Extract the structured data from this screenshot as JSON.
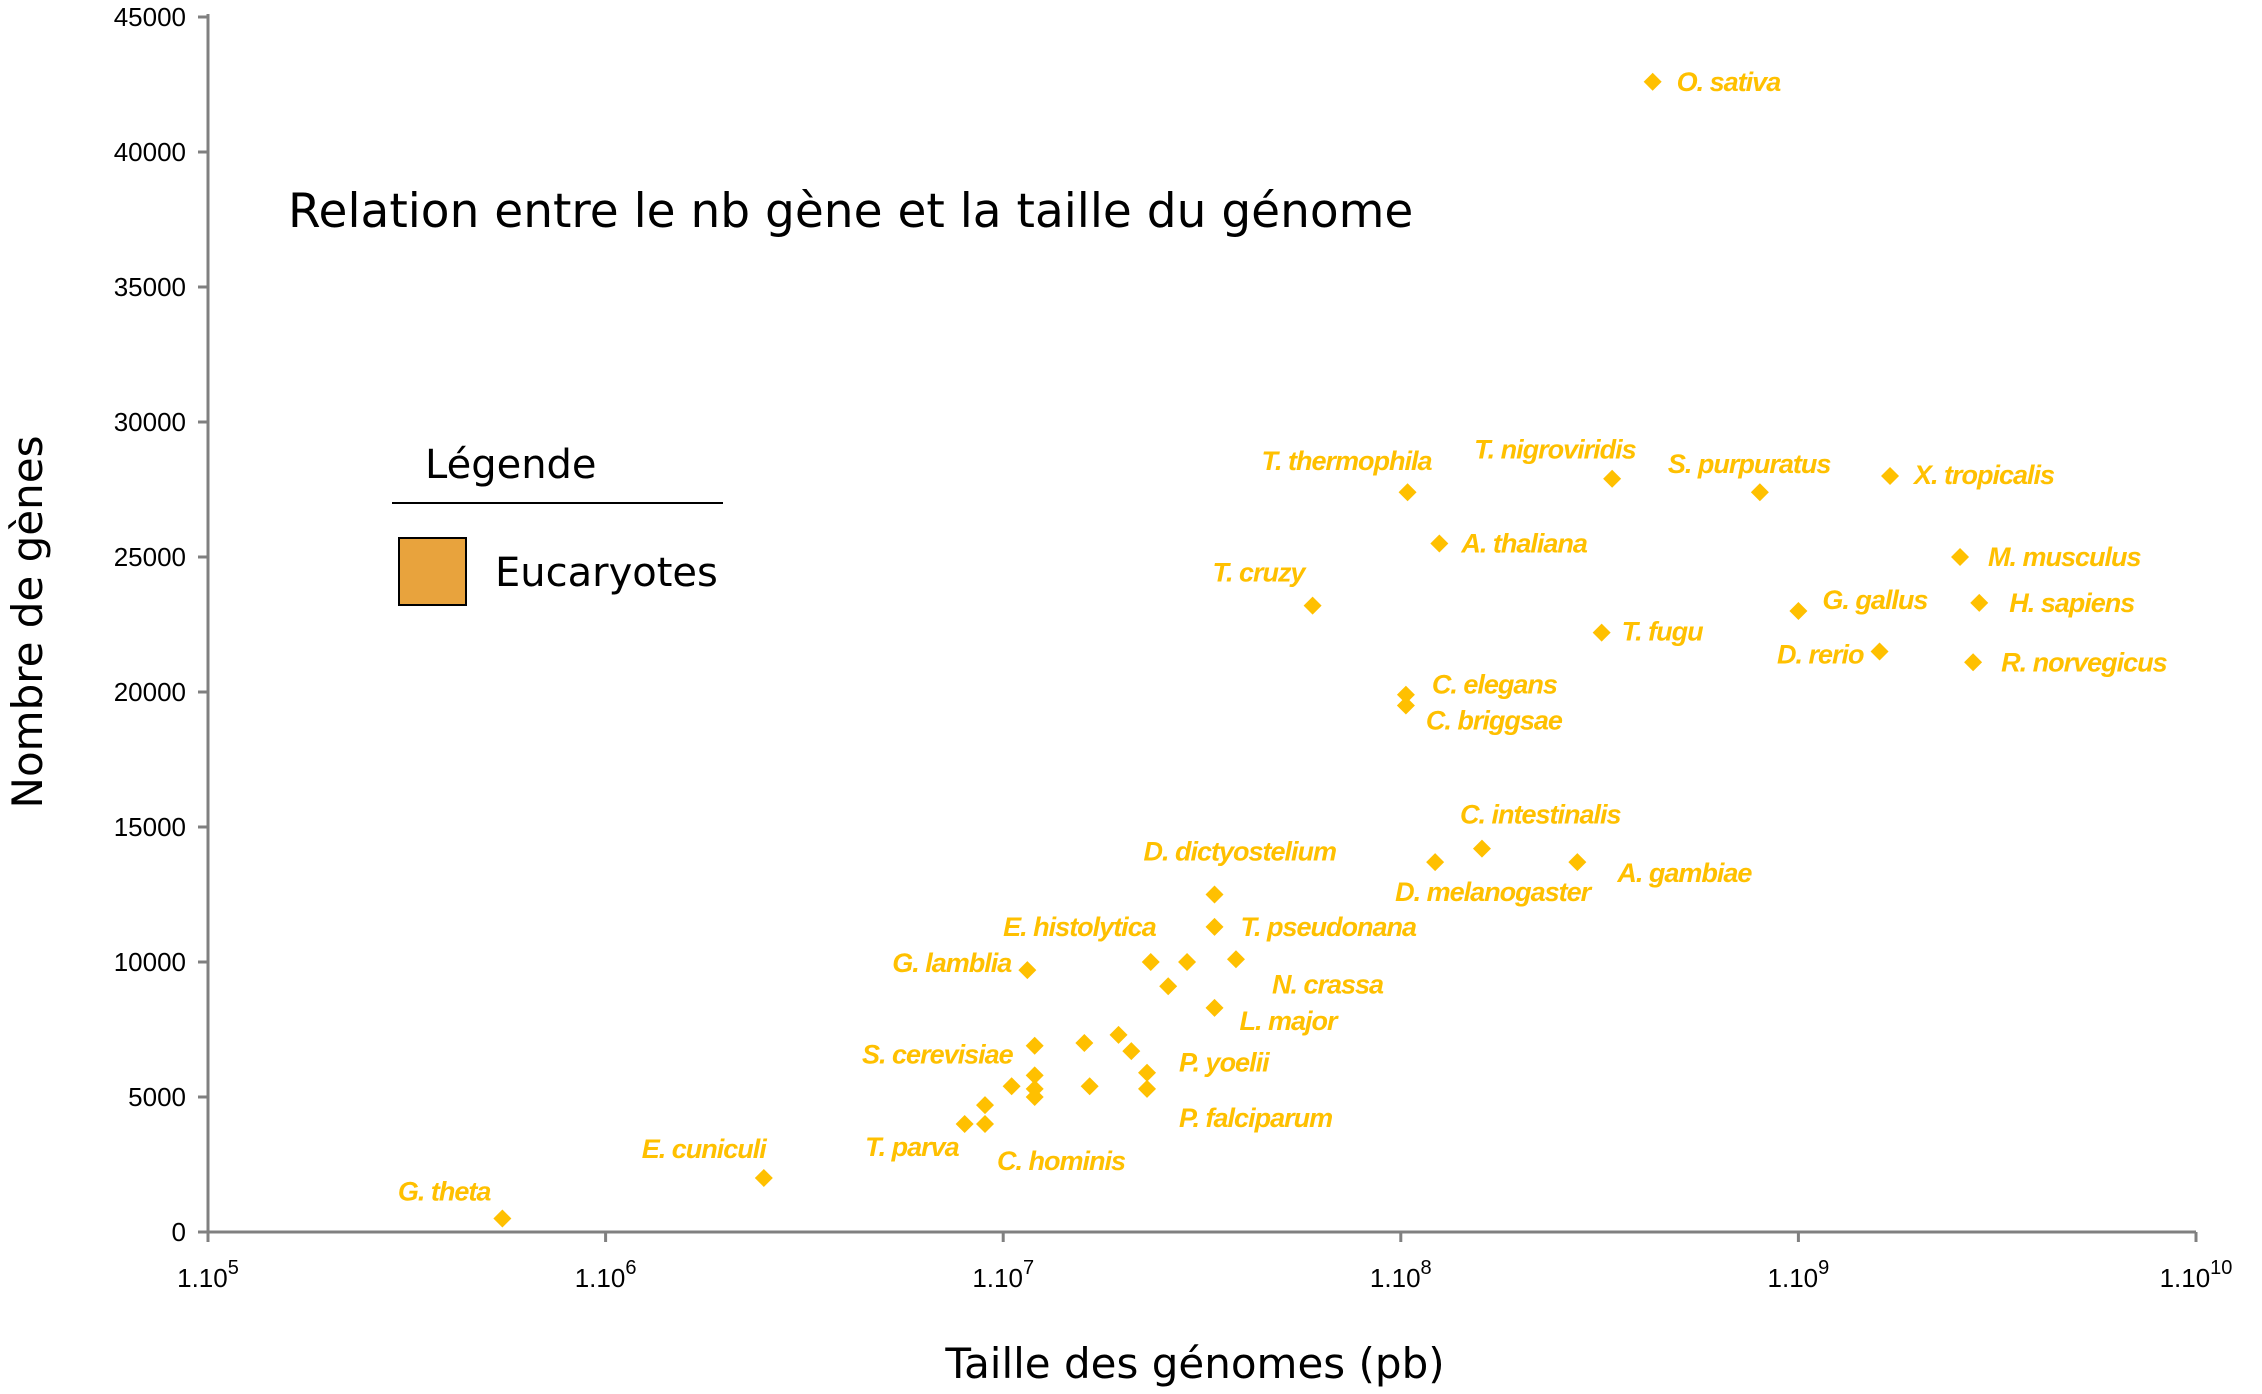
{
  "chart_data": {
    "type": "scatter",
    "title": "Relation entre le nb gène et la taille du génome",
    "xlabel": "Taille des génomes (pb)",
    "ylabel": "Nombre de gènes",
    "x_scale": "log",
    "xlim": [
      100000,
      10000000000
    ],
    "ylim": [
      0,
      45000
    ],
    "x_ticks": [
      {
        "base": "1.10",
        "exp": "5"
      },
      {
        "base": "1.10",
        "exp": "6"
      },
      {
        "base": "1.10",
        "exp": "7"
      },
      {
        "base": "1.10",
        "exp": "8"
      },
      {
        "base": "1.10",
        "exp": "9"
      },
      {
        "base": "1.10",
        "exp": "10"
      }
    ],
    "y_ticks": [
      "0",
      "5000",
      "10000",
      "15000",
      "20000",
      "25000",
      "30000",
      "35000",
      "40000",
      "45000"
    ],
    "grid": false,
    "marker_color": "#FFC000",
    "legend": {
      "title": "Légende",
      "position": "left",
      "entries": [
        {
          "label": "Eucaryotes",
          "color": "#E8A33D"
        }
      ]
    },
    "series": [
      {
        "name": "Eucaryotes",
        "points": [
          {
            "x": 550000,
            "y": 500,
            "label": "G. theta"
          },
          {
            "x": 2500000,
            "y": 2000,
            "label": "E. cuniculi"
          },
          {
            "x": 11500000,
            "y": 9700,
            "label": "G. lamblia"
          },
          {
            "x": 12000000,
            "y": 6900,
            "label": "S. cerevisiae"
          },
          {
            "x": 8000000,
            "y": 4000,
            "label": "T. parva"
          },
          {
            "x": 9000000,
            "y": 4000,
            "label": "C. hominis"
          },
          {
            "x": 9000000,
            "y": 4700,
            "label": ""
          },
          {
            "x": 10500000,
            "y": 5400,
            "label": ""
          },
          {
            "x": 12000000,
            "y": 5800,
            "label": ""
          },
          {
            "x": 12000000,
            "y": 5300,
            "label": ""
          },
          {
            "x": 12000000,
            "y": 5000,
            "label": ""
          },
          {
            "x": 16000000,
            "y": 7000,
            "label": ""
          },
          {
            "x": 16500000,
            "y": 5400,
            "label": ""
          },
          {
            "x": 19500000,
            "y": 7300,
            "label": ""
          },
          {
            "x": 21000000,
            "y": 6700,
            "label": ""
          },
          {
            "x": 23000000,
            "y": 5900,
            "label": "P. yoelii"
          },
          {
            "x": 23000000,
            "y": 5300,
            "label": "P. falciparum"
          },
          {
            "x": 23500000,
            "y": 10000,
            "label": "E. histolytica"
          },
          {
            "x": 26000000,
            "y": 9100,
            "label": ""
          },
          {
            "x": 29000000,
            "y": 10000,
            "label": ""
          },
          {
            "x": 34000000,
            "y": 12500,
            "label": "D. dictyostelium"
          },
          {
            "x": 34000000,
            "y": 11300,
            "label": "T. pseudonana"
          },
          {
            "x": 38500000,
            "y": 10100,
            "label": "N. crassa"
          },
          {
            "x": 34000000,
            "y": 8300,
            "label": "L. major"
          },
          {
            "x": 60000000,
            "y": 23200,
            "label": "T. cruzy"
          },
          {
            "x": 104000000,
            "y": 27400,
            "label": "T. thermophila"
          },
          {
            "x": 125000000,
            "y": 25500,
            "label": "A. thaliana"
          },
          {
            "x": 103000000,
            "y": 19900,
            "label": "C. elegans"
          },
          {
            "x": 103000000,
            "y": 19500,
            "label": "C. briggsae"
          },
          {
            "x": 122000000,
            "y": 13700,
            "label": "D. melanogaster"
          },
          {
            "x": 160000000,
            "y": 14200,
            "label": "C. intestinalis"
          },
          {
            "x": 278000000,
            "y": 13700,
            "label": "A. gambiae"
          },
          {
            "x": 340000000,
            "y": 27900,
            "label": "T. nigroviridis"
          },
          {
            "x": 320000000,
            "y": 22200,
            "label": "T. fugu"
          },
          {
            "x": 430000000,
            "y": 42600,
            "label": "O. sativa"
          },
          {
            "x": 800000000,
            "y": 27400,
            "label": "S. purpuratus"
          },
          {
            "x": 1000000000,
            "y": 23000,
            "label": "G. gallus"
          },
          {
            "x": 1600000000,
            "y": 21500,
            "label": "D. rerio"
          },
          {
            "x": 1700000000,
            "y": 28000,
            "label": "X. tropicalis"
          },
          {
            "x": 2550000000,
            "y": 25000,
            "label": "M. musculus"
          },
          {
            "x": 2850000000,
            "y": 23300,
            "label": "H. sapiens"
          },
          {
            "x": 2750000000,
            "y": 21100,
            "label": "R. norvegicus"
          }
        ]
      }
    ]
  }
}
